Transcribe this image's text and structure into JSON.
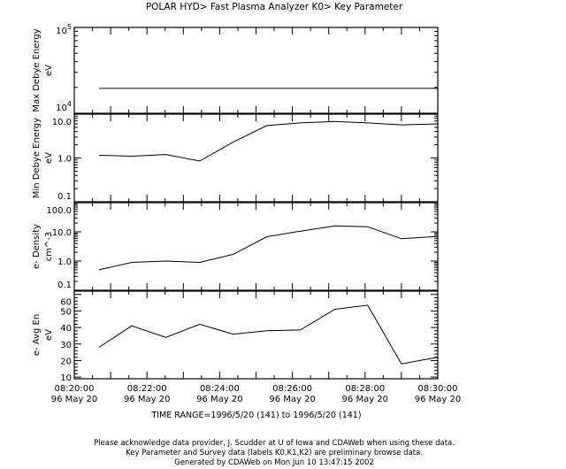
{
  "chart_data": {
    "type": "line",
    "title": "POLAR  HYD> Fast Plasma Analyzer  K0> Key Parameter",
    "x_unit": "minutes after 08:20:00",
    "xlim": [
      0,
      10
    ],
    "x_ticks": [
      {
        "value": 0,
        "line1": "08:20:00",
        "line2": "96 May 20"
      },
      {
        "value": 2,
        "line1": "08:22:00",
        "line2": "96 May 20"
      },
      {
        "value": 4,
        "line1": "08:24:00",
        "line2": "96 May 20"
      },
      {
        "value": 6,
        "line1": "08:26:00",
        "line2": "96 May 20"
      },
      {
        "value": 8,
        "line1": "08:28:00",
        "line2": "96 May 20"
      },
      {
        "value": 10,
        "line1": "08:30:00",
        "line2": "96 May 20"
      }
    ],
    "x": [
      0.68,
      1.58,
      2.52,
      3.45,
      4.37,
      5.3,
      6.22,
      7.17,
      8.07,
      9.0,
      10.0
    ],
    "panels": [
      {
        "ylabel": "Max Debye Energy",
        "yunit": "eV",
        "log": true,
        "ylim": [
          10000,
          100000
        ],
        "ticks": [
          {
            "v": 10000,
            "base": "10",
            "exp": "4"
          },
          {
            "v": 100000,
            "base": "10",
            "exp": "5"
          }
        ],
        "values": [
          19500,
          19500,
          19500,
          19500,
          19500,
          19500,
          19500,
          19500,
          19500,
          19500,
          19500
        ]
      },
      {
        "ylabel": "Min Debye Energy",
        "yunit": "eV",
        "log": true,
        "ylim": [
          0.1,
          10
        ],
        "ticks": [
          {
            "v": 0.1,
            "base": "0.1"
          },
          {
            "v": 1,
            "base": "1.0"
          },
          {
            "v": 10,
            "base": "10.0"
          }
        ],
        "values": [
          1.15,
          1.1,
          1.2,
          0.85,
          2.3,
          5.5,
          6.3,
          6.8,
          6.3,
          5.7,
          6.0
        ]
      },
      {
        "ylabel": "e- Density",
        "yunit": "cm^-3",
        "log": true,
        "ylim": [
          0.1,
          100
        ],
        "ticks": [
          {
            "v": 0.1,
            "base": "0.1"
          },
          {
            "v": 1,
            "base": "1.0"
          },
          {
            "v": 10,
            "base": "10.0"
          },
          {
            "v": 100,
            "base": "100.0"
          }
        ],
        "values": [
          0.5,
          0.9,
          1.0,
          0.9,
          1.7,
          6.8,
          10.5,
          16,
          15,
          5.8,
          7.0
        ]
      },
      {
        "ylabel": "e- Avg En",
        "yunit": "eV",
        "log": false,
        "ylim": [
          9,
          62
        ],
        "ticks": [
          {
            "v": 10,
            "base": "10"
          },
          {
            "v": 20,
            "base": "20"
          },
          {
            "v": 30,
            "base": "30"
          },
          {
            "v": 40,
            "base": "40"
          },
          {
            "v": 50,
            "base": "50"
          },
          {
            "v": 60,
            "base": "60"
          }
        ],
        "values": [
          28,
          41,
          34,
          42,
          36,
          38,
          38.5,
          51,
          53.5,
          18,
          22
        ]
      }
    ],
    "grid": false,
    "legend": "none"
  },
  "time_range": "TIME RANGE=1996/5/20 (141) to 1996/5/20 (141)",
  "footer": [
    "Please acknowledge data provider, J. Scudder at U of Iowa and CDAWeb when using these data.",
    "Key Parameter and Survey data (labels K0,K1,K2) are preliminary browse data.",
    "Generated by CDAWeb on Mon Jun 10 13:47:15 2002"
  ]
}
